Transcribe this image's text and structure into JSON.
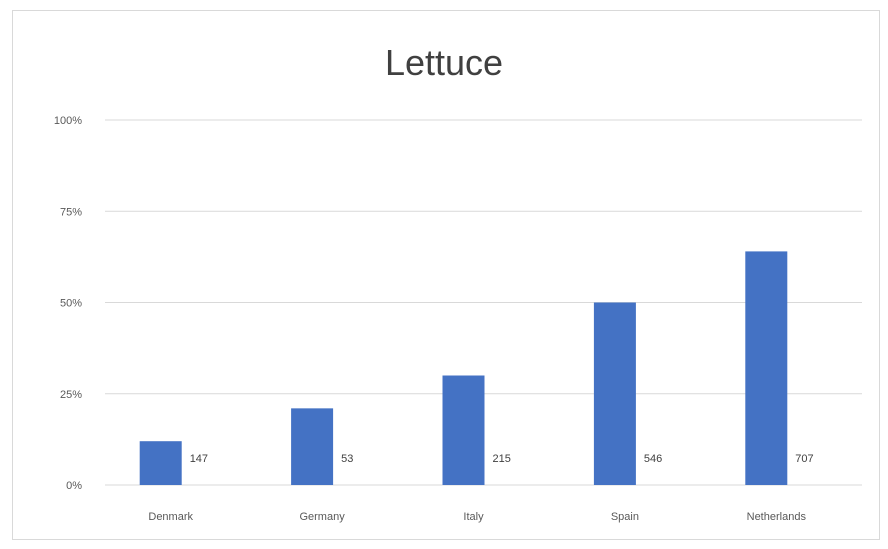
{
  "chart_data": {
    "type": "bar",
    "title": "Lettuce",
    "xlabel": "",
    "ylabel": "",
    "categories": [
      "Denmark",
      "Germany",
      "Italy",
      "Spain",
      "Netherlands"
    ],
    "values": [
      12,
      21,
      30,
      50,
      64
    ],
    "data_labels": [
      "147",
      "53",
      "215",
      "546",
      "707"
    ],
    "y_ticks": [
      "0%",
      "25%",
      "50%",
      "75%",
      "100%"
    ],
    "ylim": [
      0,
      100
    ],
    "grid": true,
    "legend": "none",
    "bar_color": "#4472c4",
    "grid_color": "#d9d9d9"
  }
}
